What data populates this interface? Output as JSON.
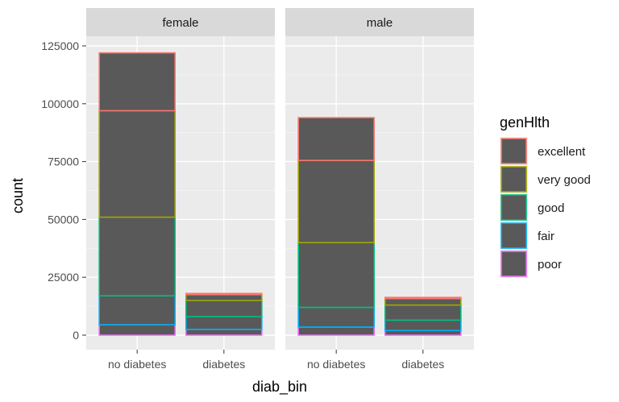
{
  "chart_data": {
    "type": "bar",
    "stacked": true,
    "facets": [
      "female",
      "male"
    ],
    "categories": [
      "no diabetes",
      "diabetes"
    ],
    "xlabel": "diab_bin",
    "ylabel": "count",
    "ylim": [
      0,
      130000
    ],
    "yticks": [
      0,
      25000,
      50000,
      75000,
      100000,
      125000
    ],
    "ytick_labels": [
      "0",
      "25000",
      "50000",
      "75000",
      "100000",
      "125000"
    ],
    "grid": true,
    "legend": {
      "title": "genHlth",
      "position": "right",
      "entries": [
        "excellent",
        "very good",
        "good",
        "fair",
        "poor"
      ],
      "colors": [
        "#F8766D",
        "#A3A500",
        "#00BF7D",
        "#00B0F6",
        "#E76BF3"
      ]
    },
    "fill_color": "#595959",
    "stack_order_bottom_to_top": [
      "poor",
      "fair",
      "good",
      "very good",
      "excellent"
    ],
    "series": [
      {
        "name": "poor",
        "female": [
          4500,
          2500
        ],
        "male": [
          3500,
          2000
        ]
      },
      {
        "name": "fair",
        "female": [
          12500,
          5500
        ],
        "male": [
          8500,
          4500
        ]
      },
      {
        "name": "good",
        "female": [
          34000,
          7000
        ],
        "male": [
          28000,
          6500
        ]
      },
      {
        "name": "very good",
        "female": [
          46000,
          2500
        ],
        "male": [
          35500,
          2800
        ]
      },
      {
        "name": "excellent",
        "female": [
          25000,
          500
        ],
        "male": [
          18500,
          500
        ]
      }
    ]
  }
}
